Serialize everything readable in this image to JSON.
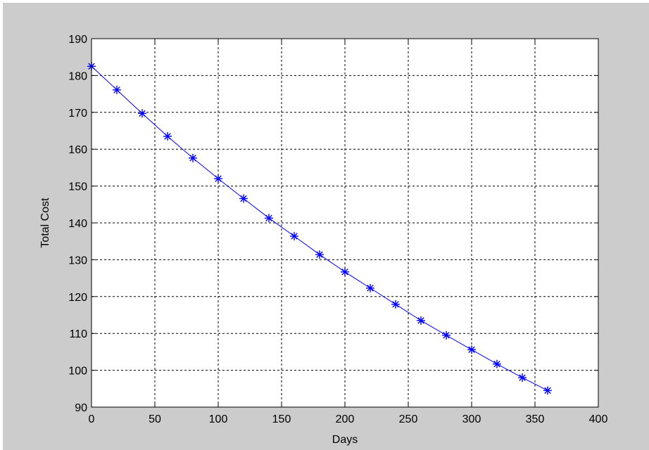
{
  "chart_data": {
    "type": "line",
    "title": "",
    "xlabel": "Days",
    "ylabel": "Total Cost",
    "xlim": [
      0,
      400
    ],
    "ylim": [
      90,
      190
    ],
    "xticks": [
      0,
      50,
      100,
      150,
      200,
      250,
      300,
      350,
      400
    ],
    "yticks": [
      90,
      100,
      110,
      120,
      130,
      140,
      150,
      160,
      170,
      180,
      190
    ],
    "grid": true,
    "grid_style": "dashed",
    "marker": "asterisk",
    "colors": {
      "series": "#0000ff",
      "axes_bg": "#ffffff",
      "figure_bg": "#cccccc",
      "grid": "#000000"
    },
    "series": [
      {
        "x": [
          0,
          20,
          40,
          60,
          80,
          100,
          120,
          140,
          160,
          180,
          200,
          220,
          240,
          260,
          280,
          300,
          320,
          340,
          360
        ],
        "y": [
          182.5,
          176.1,
          169.7,
          163.5,
          157.6,
          152.0,
          146.6,
          141.3,
          136.4,
          131.4,
          126.7,
          122.3,
          117.9,
          113.5,
          109.5,
          105.6,
          101.7,
          98.0,
          94.5
        ]
      }
    ]
  }
}
